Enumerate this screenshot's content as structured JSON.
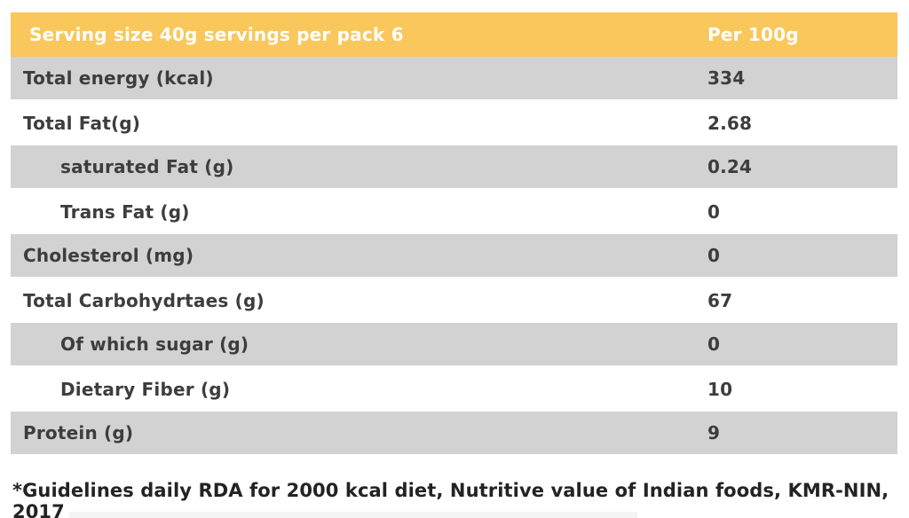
{
  "table": {
    "header": {
      "label": "Serving size 40g servings per pack 6",
      "value": "Per 100g"
    },
    "rows": [
      {
        "label": "Total energy (kcal)",
        "value": "334",
        "indent": false,
        "shaded": true
      },
      {
        "label": "Total Fat(g)",
        "value": "2.68",
        "indent": false,
        "shaded": false
      },
      {
        "label": "saturated Fat (g)",
        "value": "0.24",
        "indent": true,
        "shaded": true
      },
      {
        "label": "Trans Fat (g)",
        "value": "0",
        "indent": true,
        "shaded": false
      },
      {
        "label": "Cholesterol (mg)",
        "value": "0",
        "indent": false,
        "shaded": true
      },
      {
        "label": "Total Carbohydrtaes (g)",
        "value": "67",
        "indent": false,
        "shaded": false
      },
      {
        "label": "Of which sugar (g)",
        "value": "0",
        "indent": true,
        "shaded": true
      },
      {
        "label": "Dietary Fiber (g)",
        "value": "10",
        "indent": true,
        "shaded": false
      },
      {
        "label": "Protein (g)",
        "value": "9",
        "indent": false,
        "shaded": true
      }
    ]
  },
  "footnote": "*Guidelines daily RDA for 2000 kcal diet, Nutritive value of Indian foods, KMR-NIN, 2017",
  "colors": {
    "header_bg": "#F9C75B",
    "header_text": "#FFFFFF",
    "row_shaded_bg": "#D2D2D2",
    "row_plain_bg": "#FFFFFF",
    "body_text": "#3D3D3D",
    "footnote_text": "#232323"
  }
}
